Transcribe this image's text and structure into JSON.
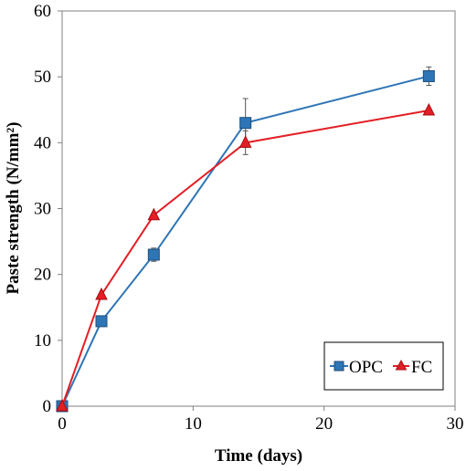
{
  "chart_data": {
    "type": "line",
    "title": "",
    "xlabel": "Time (days)",
    "ylabel": "Paste strength (N/mm²)",
    "xlim": [
      0,
      30
    ],
    "ylim": [
      0,
      60
    ],
    "xticks": [
      0,
      10,
      20,
      30
    ],
    "yticks": [
      0,
      10,
      20,
      30,
      40,
      50,
      60
    ],
    "xtick_labels": [
      "0",
      "10",
      "20",
      "30"
    ],
    "ytick_labels": [
      "0",
      "10",
      "20",
      "30",
      "40",
      "50",
      "60"
    ],
    "grid": false,
    "legend_position": "bottom-right",
    "series": [
      {
        "name": "OPC",
        "color": "#2E75B6",
        "marker": "square",
        "x": [
          0,
          3,
          7,
          14,
          28
        ],
        "y": [
          0,
          12.9,
          23,
          43,
          50.1
        ],
        "error": [
          0,
          0,
          1,
          3.7,
          1.4
        ]
      },
      {
        "name": "FC",
        "color": "#E31E24",
        "marker": "triangle",
        "x": [
          0,
          3,
          7,
          14,
          28
        ],
        "y": [
          0,
          16.9,
          29,
          40,
          44.9
        ],
        "error": [
          0,
          0,
          0,
          1.8,
          0
        ]
      }
    ]
  }
}
